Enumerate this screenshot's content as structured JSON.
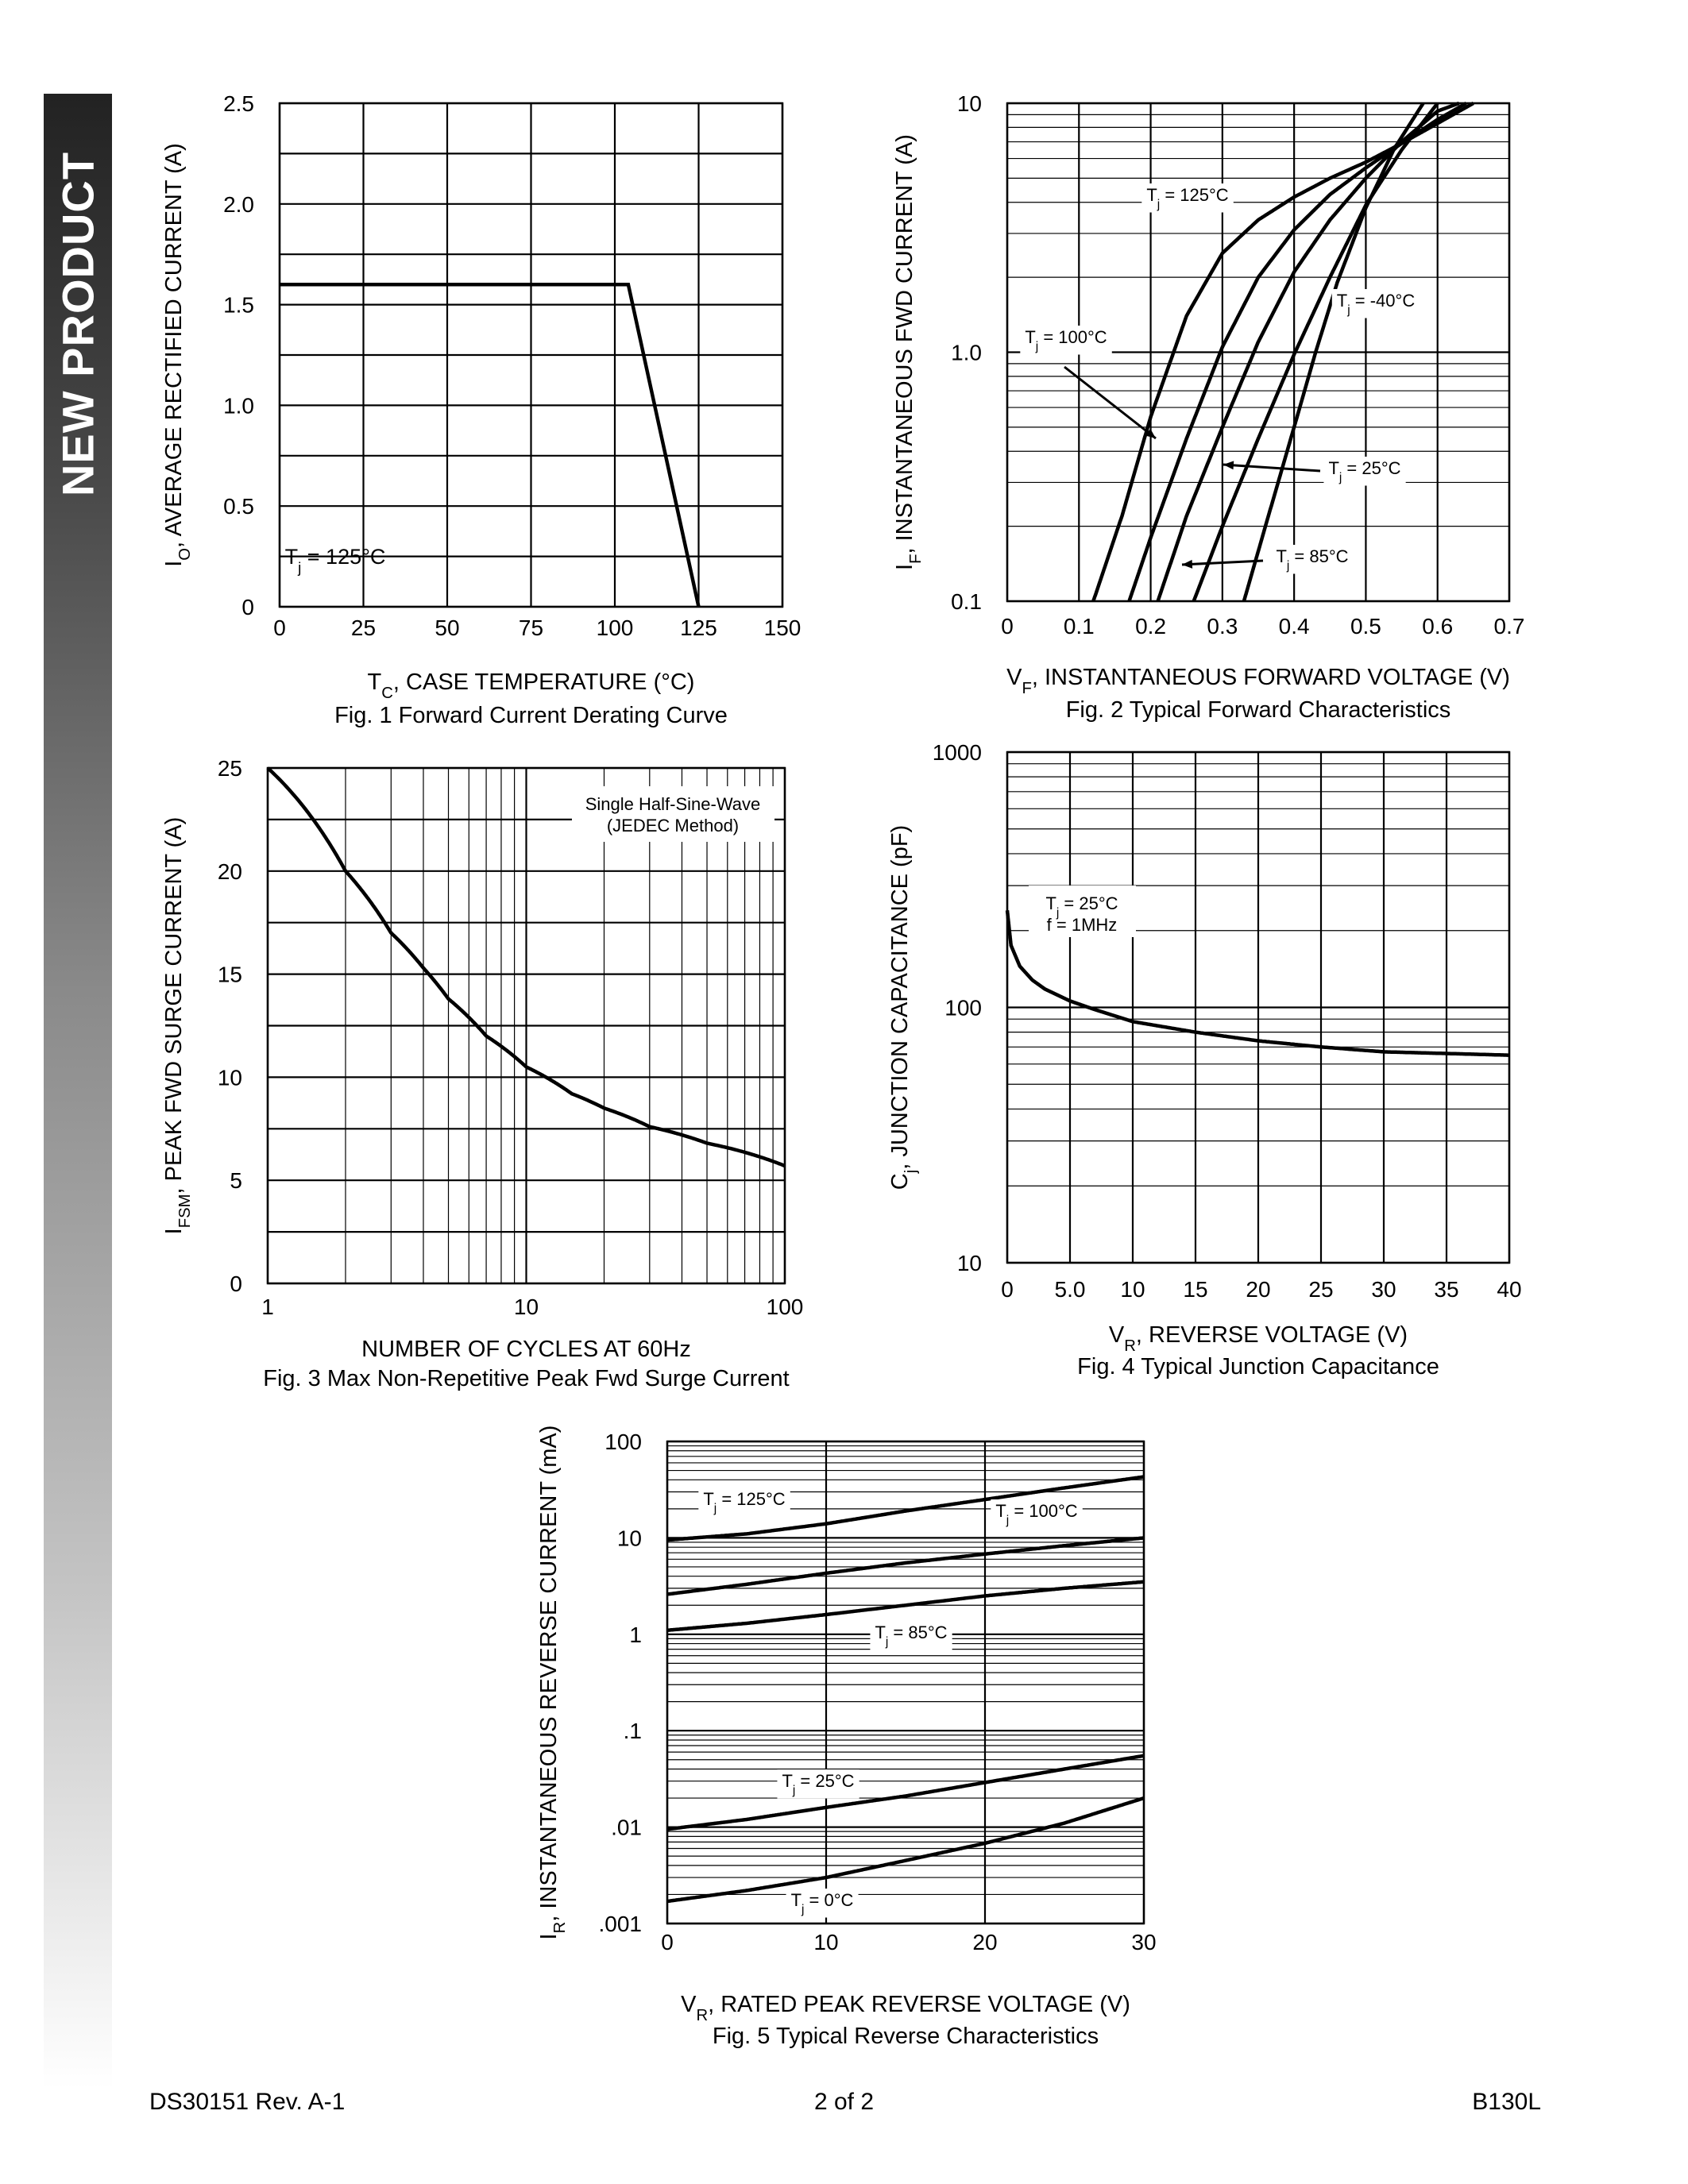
{
  "banner": {
    "text": "NEW PRODUCT"
  },
  "footer": {
    "left": "DS30151 Rev. A-1",
    "center": "2 of 2",
    "right": "B130L"
  },
  "chart_data": [
    {
      "id": "fig1",
      "type": "line",
      "caption": "Fig. 1  Forward Current Derating Curve",
      "xlabel": "T",
      "xlabel_sub": "C",
      "xlabel_rest": ",  CASE TEMPERATURE (°C)",
      "ylabel": "I",
      "ylabel_sub": "O",
      "ylabel_rest": ", AVERAGE RECTIFIED CURRENT (A)",
      "xlim": [
        0,
        150
      ],
      "ylim": [
        0,
        2.5
      ],
      "x_ticks": [
        "0",
        "25",
        "50",
        "75",
        "100",
        "125",
        "150"
      ],
      "y_ticks": [
        "0",
        "0.5",
        "1.0",
        "1.5",
        "2.0",
        "2.5"
      ],
      "annotations": [
        {
          "text": "T",
          "sub": "j",
          "rest": " = 125°C"
        }
      ],
      "series": [
        {
          "x": [
            0,
            104,
            125
          ],
          "y": [
            1.6,
            1.6,
            0
          ]
        }
      ]
    },
    {
      "id": "fig2",
      "type": "line",
      "scale_y": "log",
      "caption": "Fig. 2  Typical Forward Characteristics",
      "xlabel": "V",
      "xlabel_sub": "F",
      "xlabel_rest": ", INSTANTANEOUS FORWARD VOLTAGE (V)",
      "ylabel": "I",
      "ylabel_sub": "F",
      "ylabel_rest": ", INSTANTANEOUS FWD CURRENT (A)",
      "xlim": [
        0,
        0.7
      ],
      "ylim": [
        0.1,
        10
      ],
      "x_ticks": [
        "0",
        "0.1",
        "0.2",
        "0.3",
        "0.4",
        "0.5",
        "0.6",
        "0.7"
      ],
      "y_ticks": [
        "0.1",
        "1.0",
        "10"
      ],
      "annotations": [
        {
          "text": "T",
          "sub": "j",
          "rest": " = 125°C"
        },
        {
          "text": "T",
          "sub": "j",
          "rest": " = -40°C"
        },
        {
          "text": "T",
          "sub": "j",
          "rest": " = 100°C"
        },
        {
          "text": "T",
          "sub": "j",
          "rest": " = 25°C"
        },
        {
          "text": "T",
          "sub": "j",
          "rest": " = 85°C"
        }
      ],
      "series": [
        {
          "x": [
            0.12,
            0.16,
            0.2,
            0.25,
            0.3,
            0.35,
            0.4,
            0.45,
            0.5,
            0.55,
            0.6,
            0.65
          ],
          "y": [
            0.1,
            0.22,
            0.55,
            1.4,
            2.5,
            3.4,
            4.2,
            5.0,
            5.8,
            6.9,
            8.3,
            10
          ]
        },
        {
          "x": [
            0.17,
            0.2,
            0.25,
            0.3,
            0.35,
            0.4,
            0.45,
            0.5,
            0.55,
            0.6,
            0.64
          ],
          "y": [
            0.1,
            0.18,
            0.45,
            1.05,
            2.0,
            3.1,
            4.3,
            5.5,
            6.9,
            8.6,
            10
          ]
        },
        {
          "x": [
            0.21,
            0.25,
            0.3,
            0.35,
            0.4,
            0.45,
            0.5,
            0.55,
            0.6,
            0.63
          ],
          "y": [
            0.1,
            0.22,
            0.5,
            1.1,
            2.1,
            3.4,
            5.0,
            7.0,
            9.3,
            10
          ]
        },
        {
          "x": [
            0.26,
            0.3,
            0.35,
            0.4,
            0.45,
            0.5,
            0.55,
            0.6
          ],
          "y": [
            0.1,
            0.2,
            0.45,
            0.98,
            2.0,
            3.9,
            6.5,
            10
          ]
        },
        {
          "x": [
            0.33,
            0.36,
            0.4,
            0.43,
            0.46,
            0.5,
            0.54,
            0.58
          ],
          "y": [
            0.1,
            0.2,
            0.5,
            1.0,
            1.9,
            3.8,
            6.6,
            10
          ]
        }
      ]
    },
    {
      "id": "fig3",
      "type": "line",
      "scale_x": "log",
      "caption": "Fig. 3  Max Non-Repetitive Peak Fwd Surge Current",
      "xlabel": "NUMBER OF CYCLES AT 60Hz",
      "ylabel": "I",
      "ylabel_sub": "FSM",
      "ylabel_rest": ", PEAK FWD SURGE CURRENT (A)",
      "xlim": [
        1,
        100
      ],
      "ylim": [
        0,
        25
      ],
      "x_ticks": [
        "1",
        "10",
        "100"
      ],
      "y_ticks": [
        "0",
        "5",
        "10",
        "15",
        "20",
        "25"
      ],
      "annotations": [
        {
          "text": "Single Half-Sine-Wave"
        },
        {
          "text": "(JEDEC Method)"
        }
      ],
      "series": [
        {
          "x": [
            1,
            2,
            3,
            4,
            5,
            7,
            10,
            15,
            20,
            30,
            50,
            100
          ],
          "y": [
            25,
            20,
            17,
            15.3,
            13.8,
            12,
            10.5,
            9.2,
            8.5,
            7.6,
            6.8,
            5.7
          ]
        }
      ]
    },
    {
      "id": "fig4",
      "type": "line",
      "scale_y": "log",
      "caption": "Fig. 4  Typical Junction Capacitance",
      "xlabel": "V",
      "xlabel_sub": "R",
      "xlabel_rest": ", REVERSE VOLTAGE (V)",
      "ylabel": "C",
      "ylabel_sub": "j",
      "ylabel_rest": ", JUNCTION CAPACITANCE (pF)",
      "xlim": [
        0,
        40
      ],
      "ylim": [
        10,
        1000
      ],
      "x_ticks": [
        "0",
        "5.0",
        "10",
        "15",
        "20",
        "25",
        "30",
        "35",
        "40"
      ],
      "y_ticks": [
        "10",
        "100",
        "1000"
      ],
      "annotations": [
        {
          "text": "T",
          "sub": "j",
          "rest": " = 25°C"
        },
        {
          "text": "f = 1MHz"
        }
      ],
      "series": [
        {
          "x": [
            0,
            0.3,
            1,
            2,
            3,
            5,
            7,
            10,
            15,
            20,
            25,
            30,
            35,
            40
          ],
          "y": [
            240,
            175,
            145,
            128,
            118,
            106,
            98,
            88,
            80,
            74,
            70,
            67,
            66,
            65
          ]
        }
      ]
    },
    {
      "id": "fig5",
      "type": "line",
      "scale_y": "log",
      "caption": "Fig. 5  Typical Reverse Characteristics",
      "xlabel": "V",
      "xlabel_sub": "R",
      "xlabel_rest": ", RATED PEAK REVERSE VOLTAGE (V)",
      "ylabel": "I",
      "ylabel_sub": "R",
      "ylabel_rest": ", INSTANTANEOUS REVERSE CURRENT (mA)",
      "xlim": [
        0,
        30
      ],
      "ylim": [
        0.001,
        100
      ],
      "x_ticks": [
        "0",
        "10",
        "20",
        "30"
      ],
      "y_ticks": [
        ".001",
        ".01",
        ".1",
        "1",
        "10",
        "100"
      ],
      "annotations": [
        {
          "text": "T",
          "sub": "j",
          "rest": " = 125°C"
        },
        {
          "text": "T",
          "sub": "j",
          "rest": " = 100°C"
        },
        {
          "text": "T",
          "sub": "j",
          "rest": " = 85°C"
        },
        {
          "text": "T",
          "sub": "j",
          "rest": " = 25°C"
        },
        {
          "text": "T",
          "sub": "j",
          "rest": " = 0°C"
        }
      ],
      "series": [
        {
          "x": [
            0,
            5,
            10,
            15,
            20,
            25,
            30
          ],
          "y": [
            9.5,
            11,
            14,
            19,
            25,
            33,
            43
          ]
        },
        {
          "x": [
            0,
            5,
            10,
            15,
            20,
            25,
            30
          ],
          "y": [
            2.6,
            3.3,
            4.3,
            5.5,
            6.8,
            8.3,
            10
          ]
        },
        {
          "x": [
            0,
            5,
            10,
            15,
            20,
            25,
            30
          ],
          "y": [
            1.1,
            1.3,
            1.6,
            2.0,
            2.5,
            3.0,
            3.5
          ]
        },
        {
          "x": [
            0,
            5,
            10,
            15,
            20,
            25,
            30
          ],
          "y": [
            0.0095,
            0.012,
            0.016,
            0.021,
            0.029,
            0.04,
            0.055
          ]
        },
        {
          "x": [
            0,
            5,
            10,
            15,
            20,
            25,
            30
          ],
          "y": [
            0.0017,
            0.0022,
            0.003,
            0.0045,
            0.0068,
            0.011,
            0.02
          ]
        }
      ]
    }
  ]
}
